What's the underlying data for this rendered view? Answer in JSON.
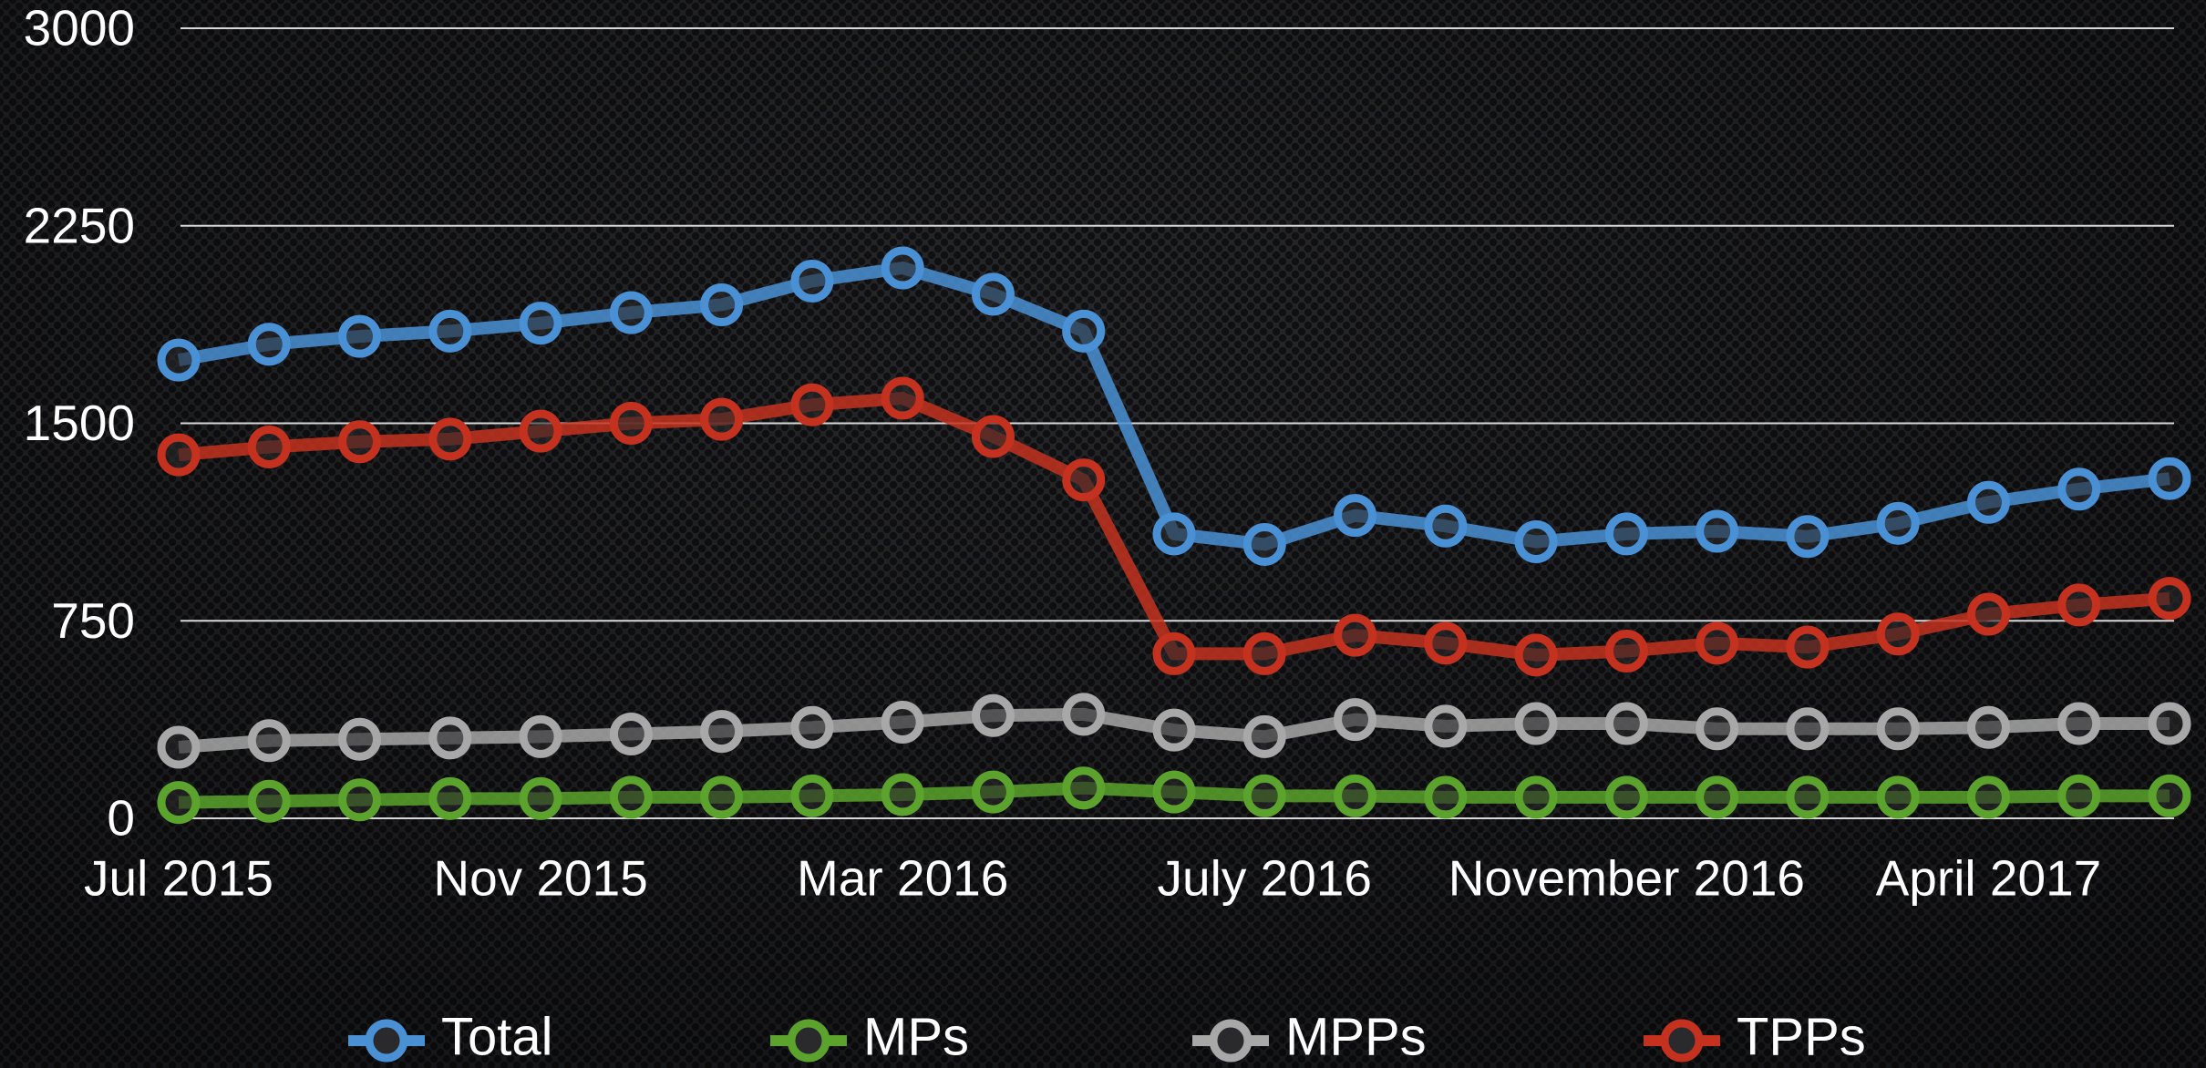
{
  "chart_data": {
    "type": "line",
    "categories": [
      "Jul 2015",
      null,
      null,
      null,
      "Nov 2015",
      null,
      null,
      null,
      "Mar 2016",
      null,
      null,
      null,
      "July 2016",
      null,
      null,
      null,
      "November 2016",
      null,
      null,
      null,
      "April 2017",
      null,
      null
    ],
    "series": [
      {
        "name": "Total",
        "color": "#4a90d4",
        "values": [
          1740,
          1800,
          1830,
          1850,
          1880,
          1920,
          1950,
          2040,
          2090,
          1990,
          1850,
          1080,
          1040,
          1150,
          1110,
          1050,
          1080,
          1090,
          1070,
          1120,
          1200,
          1250,
          1290
        ]
      },
      {
        "name": "MPs",
        "color": "#5ba32c",
        "values": [
          60,
          65,
          70,
          75,
          75,
          80,
          80,
          85,
          90,
          100,
          115,
          100,
          85,
          85,
          80,
          80,
          80,
          80,
          80,
          80,
          80,
          85,
          85
        ]
      },
      {
        "name": "MPPs",
        "color": "#a8a8a8",
        "values": [
          270,
          295,
          300,
          305,
          310,
          320,
          330,
          345,
          365,
          390,
          395,
          335,
          310,
          375,
          350,
          360,
          360,
          340,
          340,
          340,
          345,
          360,
          360
        ]
      },
      {
        "name": "TPPs",
        "color": "#c4321f",
        "values": [
          1380,
          1410,
          1430,
          1440,
          1470,
          1500,
          1515,
          1570,
          1595,
          1450,
          1285,
          625,
          625,
          695,
          665,
          620,
          635,
          665,
          650,
          700,
          775,
          810,
          835
        ]
      }
    ],
    "ylim": [
      0,
      3000
    ],
    "yticks": [
      0,
      750,
      1500,
      2250,
      3000
    ],
    "grid": true,
    "legend": "bottom"
  }
}
